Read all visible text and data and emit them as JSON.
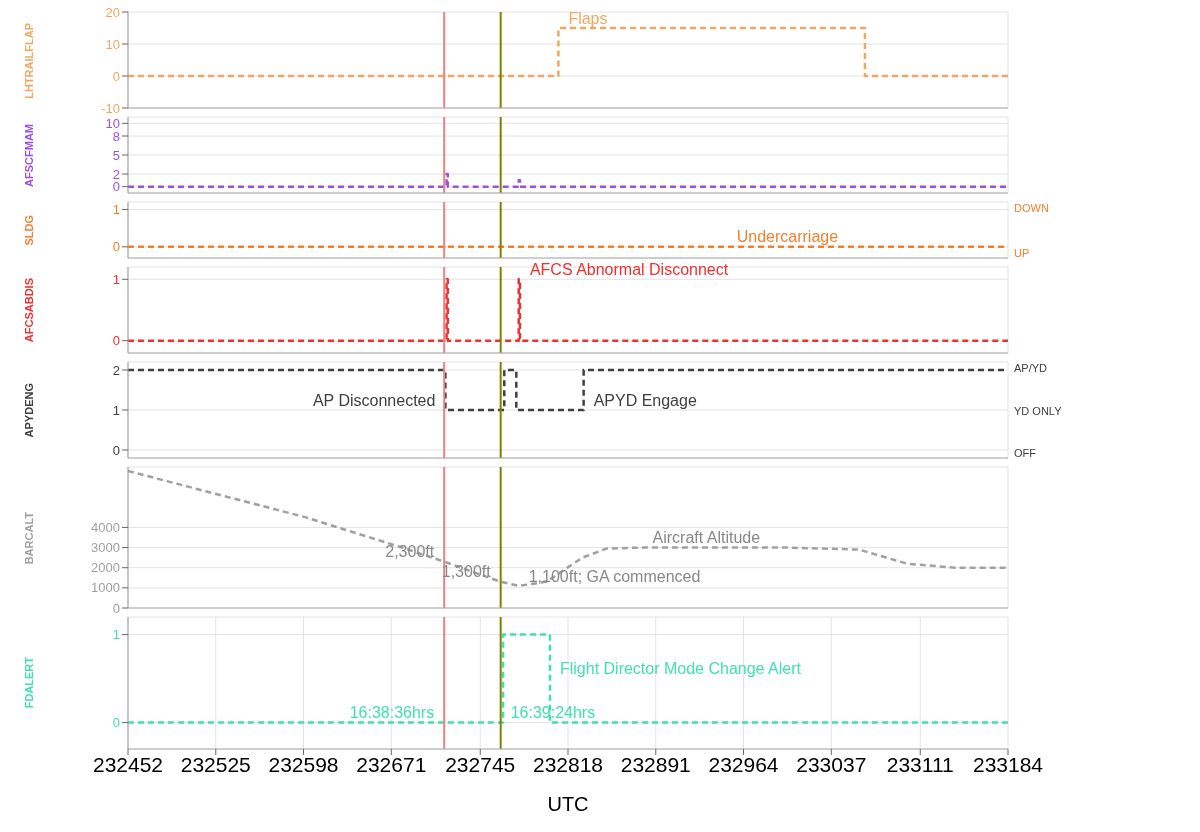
{
  "chart_data": [
    {
      "type": "step",
      "ylabel": "LHTRAILFLAP",
      "xlim": [
        232452,
        233184
      ],
      "xticks": [
        232452,
        232525,
        232598,
        232671,
        232745,
        232818,
        232891,
        232964,
        233037,
        233111,
        233184
      ],
      "ylim": [
        -10,
        20
      ],
      "yticks": [
        -10,
        0,
        10,
        20
      ],
      "tick_labels": "y",
      "grid": true,
      "line_style": "dashed",
      "marker": "none",
      "series": [
        {
          "x": [
            232452,
            232810,
            233065,
            233184
          ],
          "values": [
            0,
            15,
            0,
            0
          ],
          "color": "#f0a860"
        }
      ],
      "ref_lines": [
        {
          "axis": "x",
          "value": 232715,
          "color": "#f08080"
        },
        {
          "axis": "x",
          "value": 232762,
          "color": "#808000"
        }
      ],
      "annotations": [
        {
          "text": "Flaps",
          "x": 232810,
          "y": 15
        }
      ]
    },
    {
      "type": "step",
      "ylabel": "AFSCFMAM",
      "xlim": [
        232452,
        233184
      ],
      "xticks": [
        232452,
        232525,
        232598,
        232671,
        232745,
        232818,
        232891,
        232964,
        233037,
        233111,
        233184
      ],
      "ylim": [
        -1,
        11
      ],
      "yticks": [
        0,
        2,
        5,
        8,
        10
      ],
      "tick_labels": "y",
      "grid": true,
      "line_style": "dashed",
      "marker": "none",
      "series": [
        {
          "x": [
            232452,
            232717,
            232718,
            232777,
            232778,
            233184
          ],
          "values": [
            0,
            2,
            0,
            1,
            0,
            0
          ],
          "color": "#a050e0"
        }
      ],
      "ref_lines": [
        {
          "axis": "x",
          "value": 232715,
          "color": "#f08080"
        },
        {
          "axis": "x",
          "value": 232762,
          "color": "#808000"
        }
      ]
    },
    {
      "type": "step",
      "ylabel": "SLDG",
      "xlim": [
        232452,
        233184
      ],
      "xticks": [
        232452,
        232525,
        232598,
        232671,
        232745,
        232818,
        232891,
        232964,
        233037,
        233111,
        233184
      ],
      "ylim": [
        -0.3,
        1.2
      ],
      "yticks": [
        0,
        1
      ],
      "tick_labels": "y",
      "grid": true,
      "line_style": "dashed",
      "marker": "none",
      "series": [
        {
          "x": [
            232452,
            233184
          ],
          "values": [
            0,
            0
          ],
          "color": "#f08030"
        }
      ],
      "ref_lines": [
        {
          "axis": "x",
          "value": 232715,
          "color": "#f08080"
        },
        {
          "axis": "x",
          "value": 232762,
          "color": "#808000"
        }
      ],
      "annotations": [
        {
          "text": "Undercarriage",
          "x": 232950,
          "y": 0
        },
        "DOWN",
        "UP"
      ]
    },
    {
      "type": "step",
      "ylabel": "AFCSABDIS",
      "xlim": [
        232452,
        233184
      ],
      "xticks": [
        232452,
        232525,
        232598,
        232671,
        232745,
        232818,
        232891,
        232964,
        233037,
        233111,
        233184
      ],
      "ylim": [
        -0.2,
        1.2
      ],
      "yticks": [
        0,
        1
      ],
      "tick_labels": "y",
      "grid": true,
      "line_style": "dashed",
      "marker": "none",
      "series": [
        {
          "x": [
            232452,
            232717,
            232718,
            232777,
            232778,
            233184
          ],
          "values": [
            0,
            1,
            0,
            1,
            0,
            0
          ],
          "color": "#f03030"
        }
      ],
      "ref_lines": [
        {
          "axis": "x",
          "value": 232715,
          "color": "#f08080"
        },
        {
          "axis": "x",
          "value": 232762,
          "color": "#808000"
        }
      ],
      "annotations": [
        {
          "text": "AFCS Abnormal Disconnect",
          "x": 232778,
          "y": 1
        }
      ]
    },
    {
      "type": "step",
      "ylabel": "APYDENG",
      "xlim": [
        232452,
        233184
      ],
      "xticks": [
        232452,
        232525,
        232598,
        232671,
        232745,
        232818,
        232891,
        232964,
        233037,
        233111,
        233184
      ],
      "ylim": [
        -0.2,
        2.2
      ],
      "yticks": [
        0,
        1,
        2
      ],
      "tick_labels": "y",
      "grid": true,
      "line_style": "dashed",
      "marker": "none",
      "series": [
        {
          "x": [
            232452,
            232716,
            232765,
            232775,
            232831,
            233184
          ],
          "values": [
            2,
            1,
            2,
            1,
            2,
            2
          ],
          "color": "#404040"
        }
      ],
      "ref_lines": [
        {
          "axis": "x",
          "value": 232715,
          "color": "#f08080"
        },
        {
          "axis": "x",
          "value": 232762,
          "color": "#808000"
        }
      ],
      "annotations": [
        {
          "text": "APYD Engage",
          "x": 232831,
          "y": 1
        },
        {
          "text": "AP Disconnected",
          "x": 232716,
          "y": 1
        },
        "AP/YD",
        "YD ONLY",
        "OFF"
      ]
    },
    {
      "type": "line",
      "ylabel": "BARCALT",
      "xlim": [
        232452,
        233184
      ],
      "xticks": [
        232452,
        232525,
        232598,
        232671,
        232745,
        232818,
        232891,
        232964,
        233037,
        233111,
        233184
      ],
      "ylim": [
        0,
        7000
      ],
      "yticks": [
        0,
        1000,
        2000,
        3000,
        4000
      ],
      "tick_labels": "y",
      "grid": true,
      "line_style": "dashed",
      "marker": "none",
      "series": [
        {
          "x": [
            232452,
            232600,
            232680,
            232715,
            232762,
            232777,
            232800,
            232830,
            232850,
            232880,
            233000,
            233060,
            233100,
            233140,
            233184
          ],
          "values": [
            6800,
            4500,
            3000,
            2300,
            1300,
            1100,
            1300,
            2500,
            2950,
            3000,
            3000,
            2900,
            2200,
            2000,
            2000
          ],
          "color": "#a0a0a0"
        }
      ],
      "ref_lines": [
        {
          "axis": "x",
          "value": 232715,
          "color": "#f08080"
        },
        {
          "axis": "x",
          "value": 232762,
          "color": "#808000"
        }
      ],
      "annotations": [
        {
          "text": "Aircraft Altitude",
          "x": 232880,
          "y": 3000
        },
        {
          "text": "2,300ft",
          "x": 232715,
          "y": 2300
        },
        {
          "text": "1,100ft; GA commenced",
          "x": 232777,
          "y": 1100
        },
        {
          "text": "1,300ft",
          "x": 232762,
          "y": 1300
        }
      ]
    },
    {
      "type": "step",
      "ylabel": "FDALERT",
      "xlabel": "UTC",
      "xlim": [
        232452,
        233184
      ],
      "xticks": [
        232452,
        232525,
        232598,
        232671,
        232745,
        232818,
        232891,
        232964,
        233037,
        233111,
        233184
      ],
      "ylim": [
        -0.3,
        1.2
      ],
      "yticks": [
        0,
        1
      ],
      "grid": true,
      "line_style": "dashed",
      "marker": "none",
      "series": [
        {
          "x": [
            232452,
            232764,
            232803,
            233184
          ],
          "values": [
            0,
            1,
            0,
            0
          ],
          "color": "#40e0b0"
        }
      ],
      "ref_lines": [
        {
          "axis": "x",
          "value": 232715,
          "color": "#f08080"
        },
        {
          "axis": "x",
          "value": 232762,
          "color": "#808000"
        }
      ],
      "annotations": [
        {
          "text": "Flight Director Mode Change Alert",
          "x": 232803,
          "y": 0.5
        },
        {
          "text": "16:38:36hrs",
          "x": 232715,
          "y": 0
        },
        {
          "text": "16:39:24hrs",
          "x": 232762,
          "y": 0
        }
      ]
    }
  ]
}
